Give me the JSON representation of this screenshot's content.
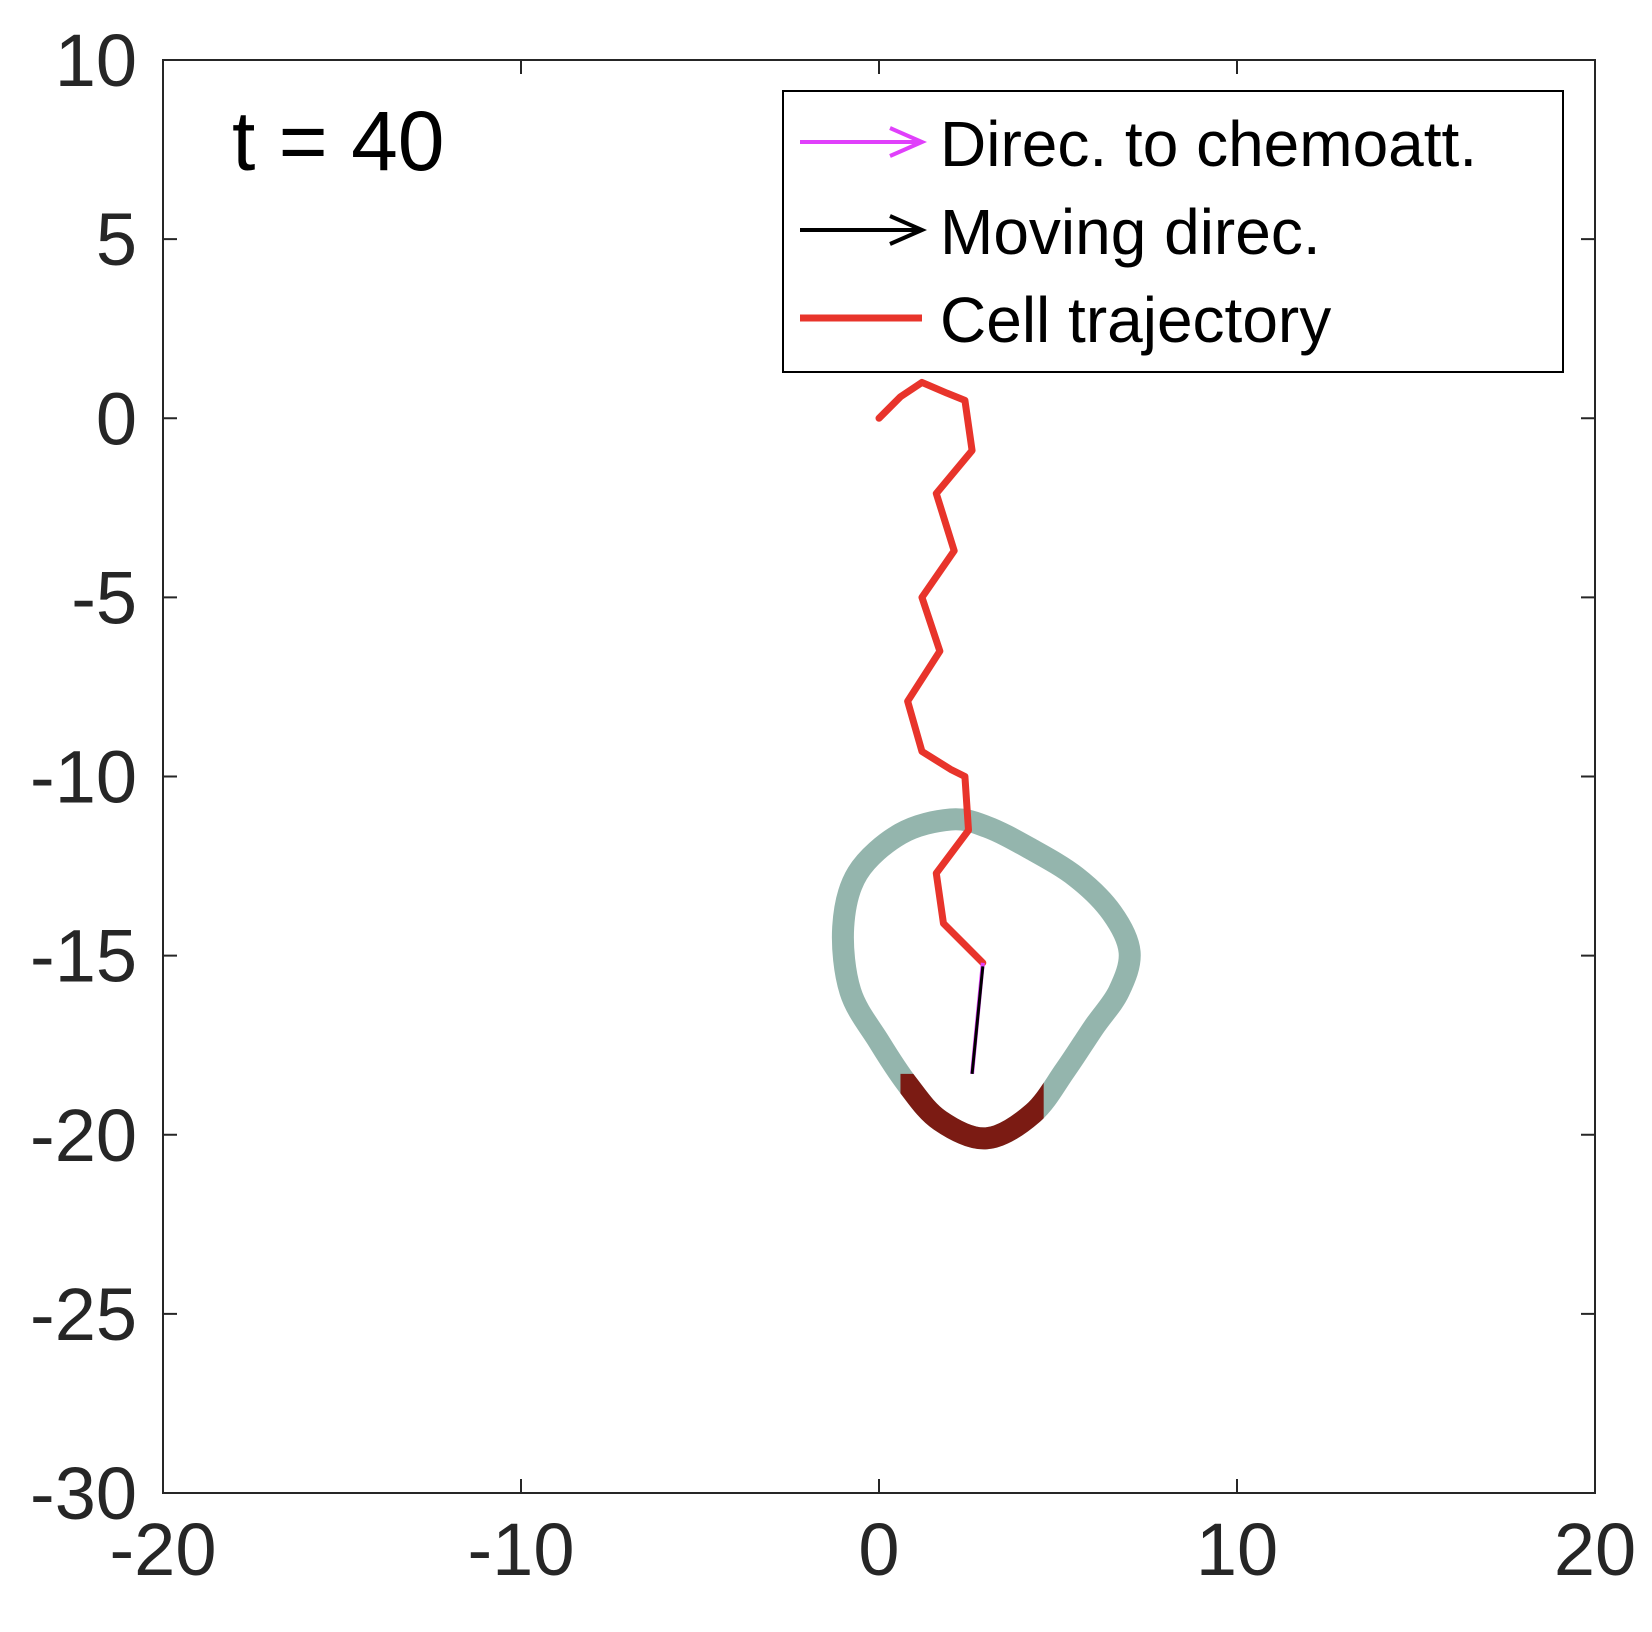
{
  "chart_data": {
    "type": "line",
    "title": "",
    "xlabel": "",
    "ylabel": "",
    "xlim": [
      -20,
      20
    ],
    "ylim": [
      -30,
      10
    ],
    "xticks": [
      "-20",
      "-10",
      "0",
      "10",
      "20"
    ],
    "yticks": [
      "10",
      "5",
      "0",
      "-5",
      "-10",
      "-15",
      "-20",
      "-25",
      "-30"
    ],
    "grid": false,
    "legend_position": "top-right",
    "annotation": "t = 40",
    "legend": [
      {
        "label": "Direc. to chemoatt.",
        "color": "#e040fb",
        "style": "arrow"
      },
      {
        "label": "Moving direc.",
        "color": "#000000",
        "style": "arrow"
      },
      {
        "label": "Cell trajectory",
        "color": "#e8342b",
        "style": "line"
      }
    ],
    "series": [
      {
        "name": "Cell trajectory",
        "color": "#e8342b",
        "points": [
          [
            0.0,
            0.0
          ],
          [
            0.6,
            0.6
          ],
          [
            1.2,
            1.0
          ],
          [
            1.9,
            0.7
          ],
          [
            2.4,
            0.5
          ],
          [
            2.6,
            -0.9
          ],
          [
            1.6,
            -2.1
          ],
          [
            2.1,
            -3.7
          ],
          [
            1.2,
            -5.0
          ],
          [
            1.7,
            -6.5
          ],
          [
            0.8,
            -7.9
          ],
          [
            1.2,
            -9.3
          ],
          [
            2.0,
            -9.8
          ],
          [
            2.4,
            -10.0
          ],
          [
            2.5,
            -11.5
          ],
          [
            1.6,
            -12.7
          ],
          [
            1.8,
            -14.1
          ],
          [
            2.4,
            -14.7
          ],
          [
            2.9,
            -15.2
          ]
        ]
      }
    ],
    "cell_boundary": {
      "color": "#94b5ad",
      "front_color": "#7b1b13",
      "points": [
        [
          2.0,
          -11.2
        ],
        [
          3.0,
          -11.4
        ],
        [
          4.2,
          -12.0
        ],
        [
          5.5,
          -12.8
        ],
        [
          6.5,
          -13.8
        ],
        [
          7.0,
          -14.9
        ],
        [
          6.7,
          -16.0
        ],
        [
          6.0,
          -17.0
        ],
        [
          5.2,
          -18.2
        ],
        [
          4.3,
          -19.4
        ],
        [
          3.0,
          -20.1
        ],
        [
          1.7,
          -19.6
        ],
        [
          0.8,
          -18.6
        ],
        [
          0.0,
          -17.4
        ],
        [
          -0.8,
          -16.0
        ],
        [
          -1.0,
          -14.2
        ],
        [
          -0.6,
          -12.7
        ],
        [
          0.6,
          -11.6
        ]
      ],
      "front_range_x": [
        0.6,
        4.6
      ]
    },
    "arrows": [
      {
        "name": "Direc. to chemoatt.",
        "color": "#e040fb",
        "from": [
          2.9,
          -15.2
        ],
        "to": [
          2.6,
          -18.3
        ]
      },
      {
        "name": "Moving direc.",
        "color": "#000000",
        "from": [
          2.9,
          -15.3
        ],
        "to": [
          2.6,
          -18.3
        ]
      }
    ]
  }
}
